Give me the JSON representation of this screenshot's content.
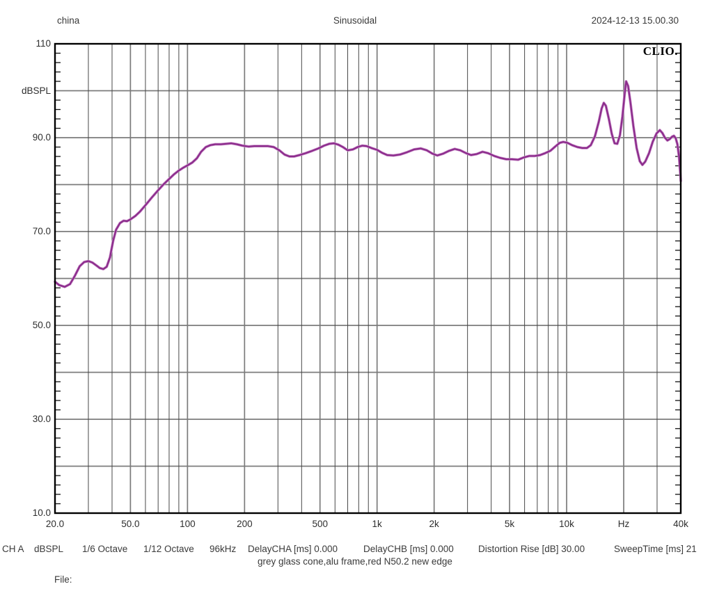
{
  "header": {
    "left": "china",
    "center": "Sinusoidal",
    "right": "2024-12-13 15.00.30"
  },
  "logo_text": "CLIO.",
  "status_bar": {
    "items": [
      "CH A",
      "dBSPL",
      "1/6 Octave",
      "1/12 Octave",
      "96kHz",
      "DelayCHA [ms] 0.000",
      "DelayCHB [ms] 0.000",
      "Distortion Rise [dB] 30.00",
      "SweepTime [ms] 21"
    ]
  },
  "caption": "grey glass cone,alu frame,red N50.2 new edge",
  "file_label": "File:",
  "colors": {
    "curve": "#8b2b8b",
    "curve_halo": "#c587c5",
    "grid_major": "#7b7b7b",
    "grid_minor": "#474747",
    "border": "#000000"
  },
  "chart_data": {
    "type": "line",
    "title": "Sinusoidal",
    "grid": true,
    "legend_position": "none",
    "x_axis": {
      "scale": "log",
      "unit": "Hz",
      "min": 20,
      "max": 40000,
      "ticks": [
        {
          "f": 20,
          "label": "20.0"
        },
        {
          "f": 50,
          "label": "50.0"
        },
        {
          "f": 100,
          "label": "100"
        },
        {
          "f": 200,
          "label": "200"
        },
        {
          "f": 500,
          "label": "500"
        },
        {
          "f": 1000,
          "label": "1k"
        },
        {
          "f": 2000,
          "label": "2k"
        },
        {
          "f": 5000,
          "label": "5k"
        },
        {
          "f": 10000,
          "label": "10k"
        },
        {
          "f": 20000,
          "label": "Hz"
        },
        {
          "f": 40000,
          "label": "40k"
        }
      ],
      "gridline_freqs": [
        30,
        40,
        50,
        60,
        70,
        80,
        90,
        100,
        200,
        300,
        400,
        500,
        600,
        700,
        800,
        900,
        1000,
        2000,
        3000,
        4000,
        5000,
        6000,
        7000,
        8000,
        9000,
        10000,
        20000,
        30000
      ],
      "emphasized_freqs": [
        50,
        100,
        200,
        500,
        1000,
        2000,
        5000,
        10000,
        20000
      ]
    },
    "y_axis": {
      "unit": "dBSPL",
      "min": 10,
      "max": 110,
      "major_step": 10,
      "minor_step": 2,
      "ticks": [
        {
          "db": 110,
          "label": "110"
        },
        {
          "db": 100,
          "label": "dBSPL"
        },
        {
          "db": 90,
          "label": "90.0"
        },
        {
          "db": 70,
          "label": "70.0"
        },
        {
          "db": 50,
          "label": "50.0"
        },
        {
          "db": 30,
          "label": "30.0"
        },
        {
          "db": 10,
          "label": "10.0"
        }
      ]
    },
    "series": [
      {
        "name": "CH A dBSPL",
        "color": "#8b2b8b",
        "points": [
          [
            20,
            59.3
          ],
          [
            21,
            58.6
          ],
          [
            22.5,
            58.2
          ],
          [
            24,
            58.8
          ],
          [
            25.5,
            60.6
          ],
          [
            27,
            62.6
          ],
          [
            28.5,
            63.5
          ],
          [
            30,
            63.7
          ],
          [
            31.5,
            63.4
          ],
          [
            33,
            62.8
          ],
          [
            34.5,
            62.2
          ],
          [
            36,
            62.0
          ],
          [
            37.5,
            62.5
          ],
          [
            39,
            64.5
          ],
          [
            40.5,
            68.0
          ],
          [
            42,
            70.4
          ],
          [
            44,
            71.8
          ],
          [
            46,
            72.3
          ],
          [
            48,
            72.2
          ],
          [
            50,
            72.6
          ],
          [
            53,
            73.3
          ],
          [
            56,
            74.2
          ],
          [
            60,
            75.6
          ],
          [
            65,
            77.3
          ],
          [
            70,
            78.8
          ],
          [
            75,
            80.1
          ],
          [
            80,
            81.2
          ],
          [
            85,
            82.2
          ],
          [
            90,
            83.0
          ],
          [
            95,
            83.6
          ],
          [
            100,
            84.1
          ],
          [
            106,
            84.7
          ],
          [
            112,
            85.6
          ],
          [
            118,
            87.0
          ],
          [
            125,
            88.0
          ],
          [
            132,
            88.4
          ],
          [
            140,
            88.6
          ],
          [
            150,
            88.6
          ],
          [
            160,
            88.7
          ],
          [
            170,
            88.8
          ],
          [
            182,
            88.6
          ],
          [
            195,
            88.3
          ],
          [
            210,
            88.1
          ],
          [
            225,
            88.2
          ],
          [
            245,
            88.2
          ],
          [
            265,
            88.2
          ],
          [
            285,
            88.0
          ],
          [
            305,
            87.3
          ],
          [
            325,
            86.4
          ],
          [
            345,
            86.0
          ],
          [
            365,
            86.0
          ],
          [
            390,
            86.3
          ],
          [
            420,
            86.7
          ],
          [
            455,
            87.2
          ],
          [
            490,
            87.7
          ],
          [
            525,
            88.3
          ],
          [
            560,
            88.7
          ],
          [
            590,
            88.8
          ],
          [
            625,
            88.5
          ],
          [
            660,
            88.0
          ],
          [
            700,
            87.3
          ],
          [
            745,
            87.5
          ],
          [
            790,
            88.0
          ],
          [
            835,
            88.3
          ],
          [
            880,
            88.2
          ],
          [
            935,
            87.8
          ],
          [
            1000,
            87.4
          ],
          [
            1060,
            86.8
          ],
          [
            1130,
            86.3
          ],
          [
            1220,
            86.2
          ],
          [
            1320,
            86.4
          ],
          [
            1440,
            86.9
          ],
          [
            1570,
            87.5
          ],
          [
            1700,
            87.7
          ],
          [
            1830,
            87.3
          ],
          [
            1960,
            86.6
          ],
          [
            2080,
            86.2
          ],
          [
            2230,
            86.6
          ],
          [
            2400,
            87.2
          ],
          [
            2570,
            87.6
          ],
          [
            2750,
            87.3
          ],
          [
            2950,
            86.7
          ],
          [
            3130,
            86.3
          ],
          [
            3350,
            86.5
          ],
          [
            3600,
            87.0
          ],
          [
            3850,
            86.7
          ],
          [
            4150,
            86.1
          ],
          [
            4450,
            85.7
          ],
          [
            4800,
            85.4
          ],
          [
            5150,
            85.4
          ],
          [
            5550,
            85.3
          ],
          [
            5950,
            85.8
          ],
          [
            6350,
            86.1
          ],
          [
            6800,
            86.1
          ],
          [
            7250,
            86.3
          ],
          [
            7700,
            86.7
          ],
          [
            8200,
            87.2
          ],
          [
            8700,
            88.1
          ],
          [
            9200,
            88.9
          ],
          [
            9600,
            89.1
          ],
          [
            10100,
            88.9
          ],
          [
            10700,
            88.4
          ],
          [
            11400,
            88.0
          ],
          [
            12100,
            87.8
          ],
          [
            12800,
            87.8
          ],
          [
            13400,
            88.4
          ],
          [
            14100,
            90.3
          ],
          [
            14800,
            93.5
          ],
          [
            15300,
            96.2
          ],
          [
            15700,
            97.4
          ],
          [
            16100,
            96.8
          ],
          [
            16700,
            94.0
          ],
          [
            17300,
            90.8
          ],
          [
            17900,
            88.8
          ],
          [
            18500,
            88.7
          ],
          [
            19100,
            90.5
          ],
          [
            19700,
            94.5
          ],
          [
            20200,
            99.0
          ],
          [
            20600,
            102.0
          ],
          [
            21100,
            101.0
          ],
          [
            21700,
            97.5
          ],
          [
            22500,
            92.5
          ],
          [
            23400,
            87.8
          ],
          [
            24300,
            85.0
          ],
          [
            25100,
            84.2
          ],
          [
            26000,
            84.9
          ],
          [
            27200,
            86.7
          ],
          [
            28500,
            89.2
          ],
          [
            29800,
            90.9
          ],
          [
            31000,
            91.6
          ],
          [
            32000,
            91.0
          ],
          [
            33000,
            90.0
          ],
          [
            34000,
            89.4
          ],
          [
            35000,
            89.7
          ],
          [
            36000,
            90.2
          ],
          [
            36800,
            90.4
          ],
          [
            37600,
            89.9
          ],
          [
            38400,
            88.6
          ],
          [
            39200,
            85.8
          ],
          [
            39700,
            82.8
          ],
          [
            40000,
            80.8
          ]
        ]
      }
    ]
  }
}
